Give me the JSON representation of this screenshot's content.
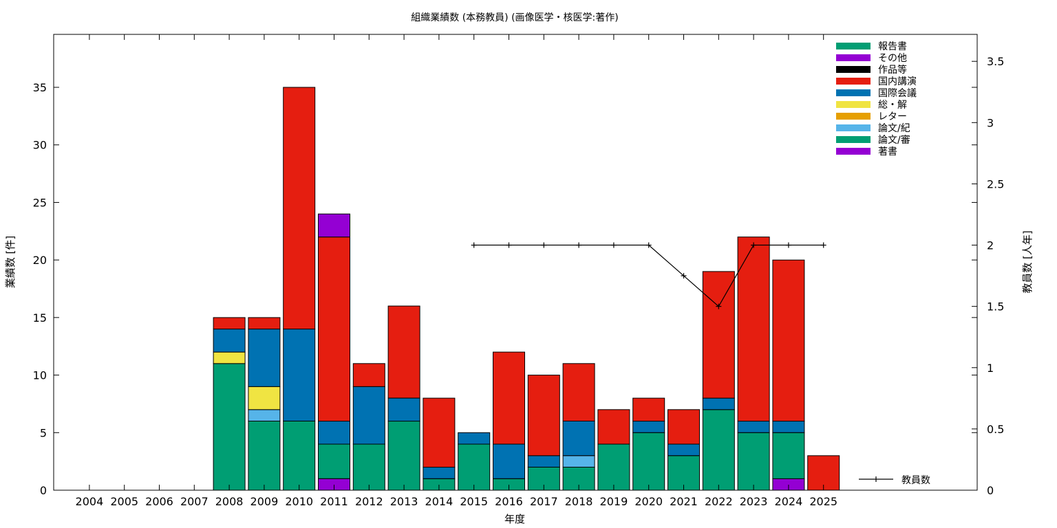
{
  "chart_data": {
    "type": "bar",
    "stacked": true,
    "title": "組織業績数 (本務教員) (画像医学・核医学:著作)",
    "xlabel": "年度",
    "ylabel": "業績数 [件]",
    "y2label": "教員数 [人年]",
    "ylim": [
      0,
      39.6
    ],
    "y2lim": [
      0,
      3.72
    ],
    "yticks": [
      0,
      5,
      10,
      15,
      20,
      25,
      30,
      35
    ],
    "y2ticks": [
      0,
      0.5,
      1,
      1.5,
      2,
      2.5,
      3,
      3.5
    ],
    "y2tick_labels": [
      "0",
      "0.5",
      "1",
      "1.5",
      "2",
      "2.5",
      "3",
      "3.5"
    ],
    "grid": false,
    "legend_position": "top-right",
    "categories": [
      "2004",
      "2005",
      "2006",
      "2007",
      "2008",
      "2009",
      "2010",
      "2011",
      "2012",
      "2013",
      "2014",
      "2015",
      "2016",
      "2017",
      "2018",
      "2019",
      "2020",
      "2021",
      "2022",
      "2023",
      "2024",
      "2025"
    ],
    "series": [
      {
        "name": "著書",
        "color": "#9400d3",
        "values": [
          0,
          0,
          0,
          0,
          0,
          0,
          0,
          1,
          0,
          0,
          0,
          0,
          0,
          0,
          0,
          0,
          0,
          0,
          0,
          0,
          1,
          0
        ]
      },
      {
        "name": "論文/審",
        "color": "#009e73",
        "values": [
          0,
          0,
          0,
          0,
          11,
          6,
          6,
          3,
          4,
          6,
          1,
          4,
          1,
          2,
          2,
          4,
          5,
          3,
          7,
          5,
          4,
          0
        ]
      },
      {
        "name": "論文/紀",
        "color": "#56b4e9",
        "values": [
          0,
          0,
          0,
          0,
          0,
          1,
          0,
          0,
          0,
          0,
          0,
          0,
          0,
          0,
          1,
          0,
          0,
          0,
          0,
          0,
          0,
          0
        ]
      },
      {
        "name": "レター",
        "color": "#e69f00",
        "values": [
          0,
          0,
          0,
          0,
          0,
          0,
          0,
          0,
          0,
          0,
          0,
          0,
          0,
          0,
          0,
          0,
          0,
          0,
          0,
          0,
          0,
          0
        ]
      },
      {
        "name": "総・解",
        "color": "#f0e442",
        "values": [
          0,
          0,
          0,
          0,
          1,
          2,
          0,
          0,
          0,
          0,
          0,
          0,
          0,
          0,
          0,
          0,
          0,
          0,
          0,
          0,
          0,
          0
        ]
      },
      {
        "name": "国際会議",
        "color": "#0072b2",
        "values": [
          0,
          0,
          0,
          0,
          2,
          5,
          8,
          2,
          5,
          2,
          1,
          1,
          3,
          1,
          3,
          0,
          1,
          1,
          1,
          1,
          1,
          0
        ]
      },
      {
        "name": "国内講演",
        "color": "#e51e10",
        "values": [
          0,
          0,
          0,
          0,
          1,
          1,
          21,
          16,
          2,
          8,
          6,
          0,
          8,
          7,
          5,
          3,
          2,
          3,
          11,
          16,
          14,
          3
        ]
      },
      {
        "name": "作品等",
        "color": "#000000",
        "values": [
          0,
          0,
          0,
          0,
          0,
          0,
          0,
          0,
          0,
          0,
          0,
          0,
          0,
          0,
          0,
          0,
          0,
          0,
          0,
          0,
          0,
          0
        ]
      },
      {
        "name": "その他",
        "color": "#9400d3",
        "values": [
          0,
          0,
          0,
          0,
          0,
          0,
          0,
          2,
          0,
          0,
          0,
          0,
          0,
          0,
          0,
          0,
          0,
          0,
          0,
          0,
          0,
          0
        ]
      },
      {
        "name": "報告書",
        "color": "#009e73",
        "values": [
          0,
          0,
          0,
          0,
          0,
          0,
          0,
          0,
          0,
          0,
          0,
          0,
          0,
          0,
          0,
          0,
          0,
          0,
          0,
          0,
          0,
          0
        ]
      }
    ],
    "line_series": {
      "name": "教員数",
      "axis": "y2",
      "color": "#000000",
      "x": [
        "2015",
        "2016",
        "2017",
        "2018",
        "2019",
        "2020",
        "2021",
        "2022",
        "2023",
        "2024",
        "2025"
      ],
      "values": [
        2,
        2,
        2,
        2,
        2,
        2,
        1.75,
        1.5,
        2,
        2,
        2
      ]
    }
  }
}
